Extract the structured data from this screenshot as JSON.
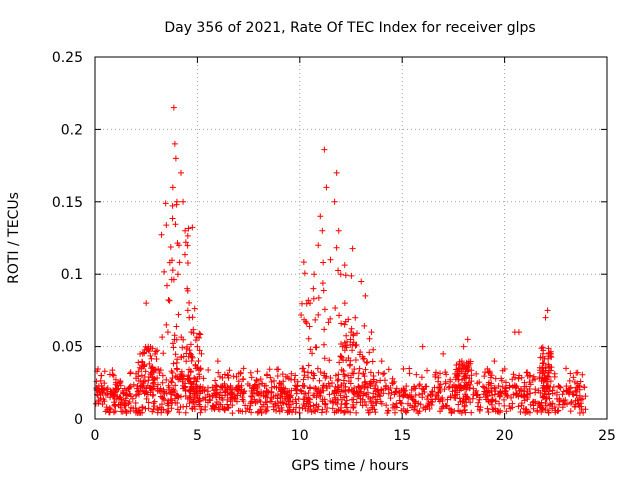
{
  "chart_data": {
    "type": "scatter",
    "title": "Day 356 of 2021, Rate Of TEC Index for receiver glps",
    "xlabel": "GPS time / hours",
    "ylabel": "ROTI / TECUs",
    "xlim": [
      0,
      25
    ],
    "ylim": [
      0,
      0.25
    ],
    "x_ticks": [
      0,
      5,
      10,
      15,
      20,
      25
    ],
    "x_tick_labels": [
      "0",
      "5",
      "10",
      "15",
      "20",
      "25"
    ],
    "y_ticks": [
      0,
      0.05,
      0.1,
      0.15,
      0.2,
      0.25
    ],
    "y_tick_labels": [
      "0",
      "0.05",
      "0.1",
      "0.15",
      "0.2",
      "0.25"
    ],
    "grid": true,
    "marker": "+",
    "color": "#ff0000",
    "series": [
      {
        "name": "ROTI",
        "background_band": {
          "x_range": [
            0,
            24
          ],
          "y_min": 0.004,
          "y_max": 0.035,
          "typical": 0.016
        },
        "x": [
          0.1,
          0.3,
          2.5,
          2.6,
          3.8,
          3.85,
          3.9,
          3.95,
          4.0,
          4.05,
          4.1,
          4.2,
          4.3,
          4.4,
          4.5,
          4.6,
          4.7,
          5.0,
          5.2,
          6.0,
          6.5,
          10.5,
          10.7,
          10.9,
          11.0,
          11.1,
          11.2,
          11.3,
          11.5,
          11.7,
          11.8,
          11.9,
          12.0,
          12.2,
          12.5,
          13.0,
          13.2,
          13.5,
          14.0,
          16.0,
          17.0,
          18.0,
          18.2,
          19.5,
          20.5,
          20.7,
          22.0,
          22.1,
          23.0
        ],
        "y": [
          0.033,
          0.03,
          0.08,
          0.05,
          0.16,
          0.215,
          0.19,
          0.18,
          0.15,
          0.1,
          0.12,
          0.17,
          0.15,
          0.13,
          0.09,
          0.07,
          0.06,
          0.05,
          0.045,
          0.04,
          0.03,
          0.08,
          0.1,
          0.12,
          0.14,
          0.13,
          0.186,
          0.16,
          0.11,
          0.15,
          0.17,
          0.13,
          0.1,
          0.08,
          0.06,
          0.095,
          0.085,
          0.06,
          0.04,
          0.05,
          0.045,
          0.05,
          0.055,
          0.04,
          0.06,
          0.06,
          0.07,
          0.075,
          0.035
        ]
      }
    ]
  }
}
